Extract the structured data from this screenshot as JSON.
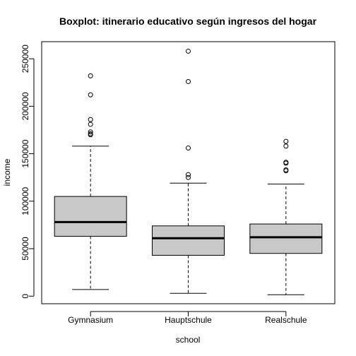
{
  "chart_data": {
    "type": "boxplot",
    "title": "Boxplot: itinerario educativo según ingresos del hogar",
    "xlabel": "school",
    "ylabel": "income",
    "categories": [
      "Gymnasium",
      "Hauptschule",
      "Realschule"
    ],
    "ylim": [
      -8000,
      268000
    ],
    "yticks": [
      0,
      50000,
      100000,
      150000,
      200000,
      250000
    ],
    "ytick_labels": [
      "0",
      "50000",
      "100000",
      "150000",
      "200000",
      "250000"
    ],
    "box_fill": "#c8c8c8",
    "grid": false,
    "boxes": [
      {
        "name": "Gymnasium",
        "whisker_low": 7000,
        "q1": 63000,
        "median": 78000,
        "q3": 105000,
        "whisker_high": 158000,
        "outliers": [
          232000,
          212000,
          186000,
          181000,
          173000,
          171000,
          170000
        ]
      },
      {
        "name": "Hauptschule",
        "whisker_low": 3000,
        "q1": 43000,
        "median": 61000,
        "q3": 74000,
        "whisker_high": 119000,
        "outliers": [
          258000,
          226000,
          156000,
          128000,
          125000
        ]
      },
      {
        "name": "Realschule",
        "whisker_low": 1500,
        "q1": 45000,
        "median": 62000,
        "q3": 76000,
        "whisker_high": 118000,
        "outliers": [
          163000,
          158000,
          141000,
          140000,
          133000,
          132000
        ]
      }
    ]
  }
}
